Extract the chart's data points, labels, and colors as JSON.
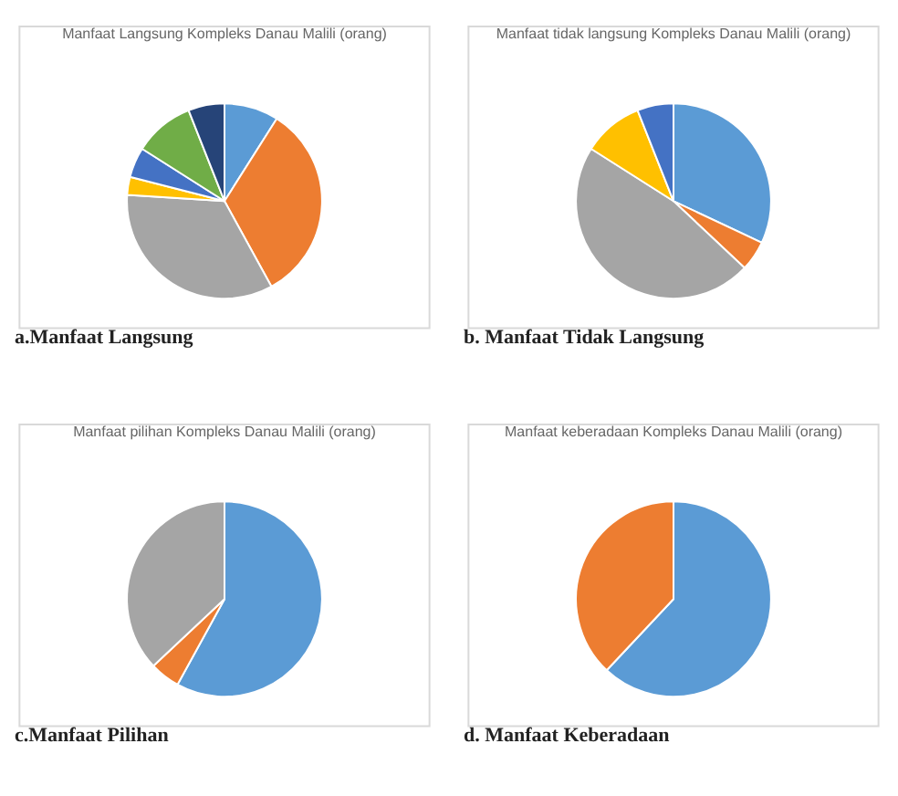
{
  "chart_data": [
    {
      "type": "pie",
      "title": "Manfaat Langsung Kompleks Danau Malili (orang)",
      "categories": [
        null,
        null,
        null,
        null,
        null,
        null,
        null
      ],
      "values": [
        9,
        33,
        34,
        3,
        5,
        10,
        6
      ],
      "colors": [
        "#5b9bd5",
        "#ed7d31",
        "#a5a5a5",
        "#ffc000",
        "#4472c4",
        "#70ad47",
        "#264478"
      ],
      "legend": false,
      "annotations": [
        "a.Manfaat Langsung"
      ]
    },
    {
      "type": "pie",
      "title": "Manfaat tidak langsung Kompleks Danau Malili (orang)",
      "categories": [
        null,
        null,
        null,
        null,
        null
      ],
      "values": [
        32,
        5,
        47,
        10,
        6
      ],
      "colors": [
        "#5b9bd5",
        "#ed7d31",
        "#a5a5a5",
        "#ffc000",
        "#4472c4"
      ],
      "legend": false,
      "annotations": [
        "b. Manfaat Tidak Langsung"
      ]
    },
    {
      "type": "pie",
      "title": "Manfaat pilihan Kompleks Danau Malili (orang)",
      "categories": [
        null,
        null,
        null
      ],
      "values": [
        58,
        5,
        37
      ],
      "colors": [
        "#5b9bd5",
        "#ed7d31",
        "#a5a5a5"
      ],
      "legend": false,
      "annotations": [
        "c.Manfaat Pilihan"
      ]
    },
    {
      "type": "pie",
      "title": "Manfaat keberadaan Kompleks Danau Malili (orang)",
      "categories": [
        null,
        null
      ],
      "values": [
        62,
        38
      ],
      "colors": [
        "#5b9bd5",
        "#ed7d31"
      ],
      "legend": false,
      "annotations": [
        "d. Manfaat Keberadaan"
      ]
    }
  ]
}
